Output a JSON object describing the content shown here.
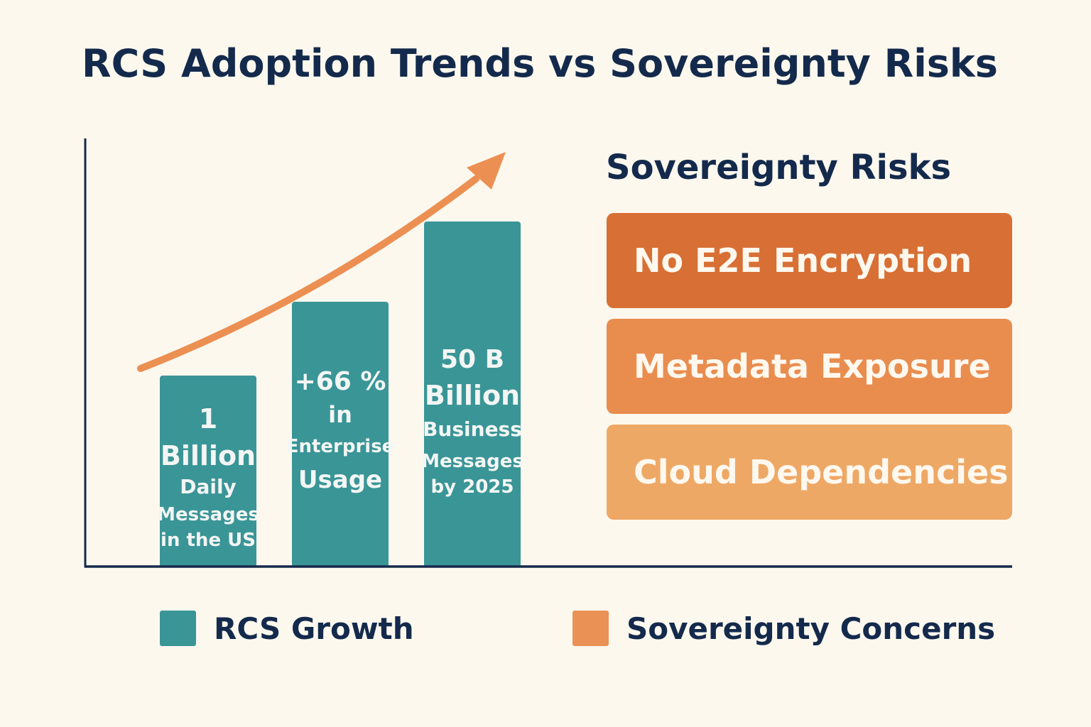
{
  "chart_data": {
    "type": "bar",
    "title": "RCS Adoption Trends vs Sovereignty Risks",
    "bars": [
      {
        "lines": [
          "1",
          "Billion",
          "Daily",
          "Messages",
          "in the US"
        ]
      },
      {
        "lines": [
          "+66 %",
          "in",
          "Enterprise",
          "Usage"
        ]
      },
      {
        "lines": [
          "50 B",
          "Billion",
          "Business",
          "Messages",
          "by 2025"
        ]
      }
    ],
    "relative_heights": [
      268,
      372,
      485
    ],
    "trend_arrow": true,
    "legend": [
      {
        "label": "RCS Growth",
        "color": "#3a9597"
      },
      {
        "label": "Sovereignty Concerns",
        "color": "#ea9155"
      }
    ]
  },
  "risks": {
    "title": "Sovereignty Risks",
    "items": [
      {
        "label": "No E2E Encryption",
        "color": "#d86f34"
      },
      {
        "label": "Metadata Exposure",
        "color": "#e98d4f"
      },
      {
        "label": "Cloud Dependencies",
        "color": "#eea865"
      }
    ]
  },
  "colors": {
    "bar": "#3a9597",
    "axis": "#142a4c",
    "arrow": "#ec8f52"
  }
}
